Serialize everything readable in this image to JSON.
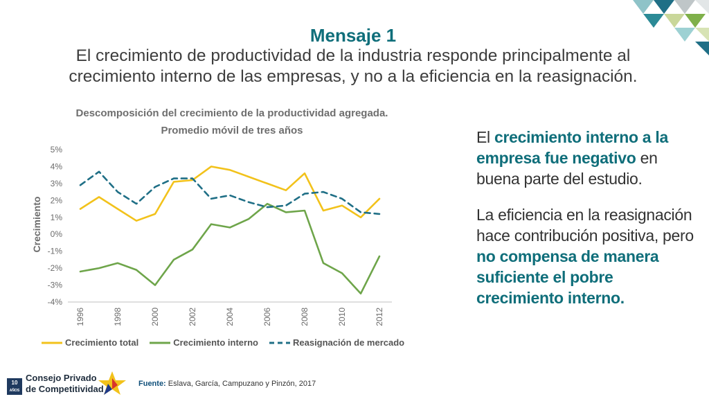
{
  "slide": {
    "message_title": "Mensaje 1",
    "message_line1": "El crecimiento de productividad de la industria responde principalmente al",
    "message_line2": "crecimiento interno de las empresas, y no a la eficiencia en la reasignación."
  },
  "side": {
    "p1_a": "El ",
    "p1_hl": "crecimiento interno a la empresa fue negativo",
    "p1_b": " en buena parte del estudio.",
    "p2_a": "La eficiencia en la reasignación hace contribución positiva, pero ",
    "p2_hl": "no compensa de manera suficiente el pobre crecimiento interno."
  },
  "footer": {
    "logo_line1": "Consejo Privado",
    "logo_line2": "de Competitividad",
    "badge_num": "10",
    "badge_sub": "AÑOS",
    "source_label": "Fuente:",
    "source_text": "Eslava, García, Campuzano y Pinzón, 2017"
  },
  "colors": {
    "total": "#f2c21b",
    "interno": "#6ea54a",
    "reasignacion": "#1f6f86",
    "accent": "#0f6e7a"
  },
  "chart_data": {
    "type": "line",
    "title": "Descomposición del crecimiento de la productividad agregada.",
    "subtitle": "Promedio móvil de tres años",
    "ylabel": "Crecimiento",
    "xlabel": "",
    "ylim": [
      -4,
      5
    ],
    "yticks": [
      5,
      4,
      3,
      2,
      1,
      0,
      -1,
      -2,
      -3,
      -4
    ],
    "ytick_labels": [
      "5%",
      "4%",
      "3%",
      "2%",
      "1%",
      "0%",
      "-1%",
      "-2%",
      "-3%",
      "-4%"
    ],
    "x": [
      1996,
      1997,
      1998,
      1999,
      2000,
      2001,
      2002,
      2003,
      2004,
      2005,
      2006,
      2007,
      2008,
      2009,
      2010,
      2011,
      2012
    ],
    "xtick_labels": [
      "1996",
      "1998",
      "2000",
      "2002",
      "2004",
      "2006",
      "2008",
      "2010",
      "2012"
    ],
    "xtick_values": [
      1996,
      1998,
      2000,
      2002,
      2004,
      2006,
      2008,
      2010,
      2012
    ],
    "legend_position": "bottom",
    "series": [
      {
        "name": "Crecimiento total",
        "style": "solid",
        "color": "#f2c21b",
        "values": [
          1.5,
          2.2,
          1.5,
          0.8,
          1.2,
          3.1,
          3.2,
          4.0,
          3.8,
          3.4,
          3.0,
          2.6,
          3.6,
          1.4,
          1.7,
          1.0,
          2.1
        ]
      },
      {
        "name": "Crecimiento interno",
        "style": "solid",
        "color": "#6ea54a",
        "values": [
          -2.2,
          -2.0,
          -1.7,
          -2.1,
          -3.0,
          -1.5,
          -0.9,
          0.6,
          0.4,
          0.9,
          1.8,
          1.3,
          1.4,
          -1.7,
          -2.3,
          -3.5,
          -1.3
        ]
      },
      {
        "name": "Reasignación de mercado",
        "style": "dashed",
        "color": "#1f6f86",
        "values": [
          2.9,
          3.7,
          2.5,
          1.8,
          2.8,
          3.3,
          3.3,
          2.1,
          2.3,
          1.9,
          1.6,
          1.7,
          2.4,
          2.5,
          2.1,
          1.3,
          1.2
        ]
      }
    ]
  }
}
